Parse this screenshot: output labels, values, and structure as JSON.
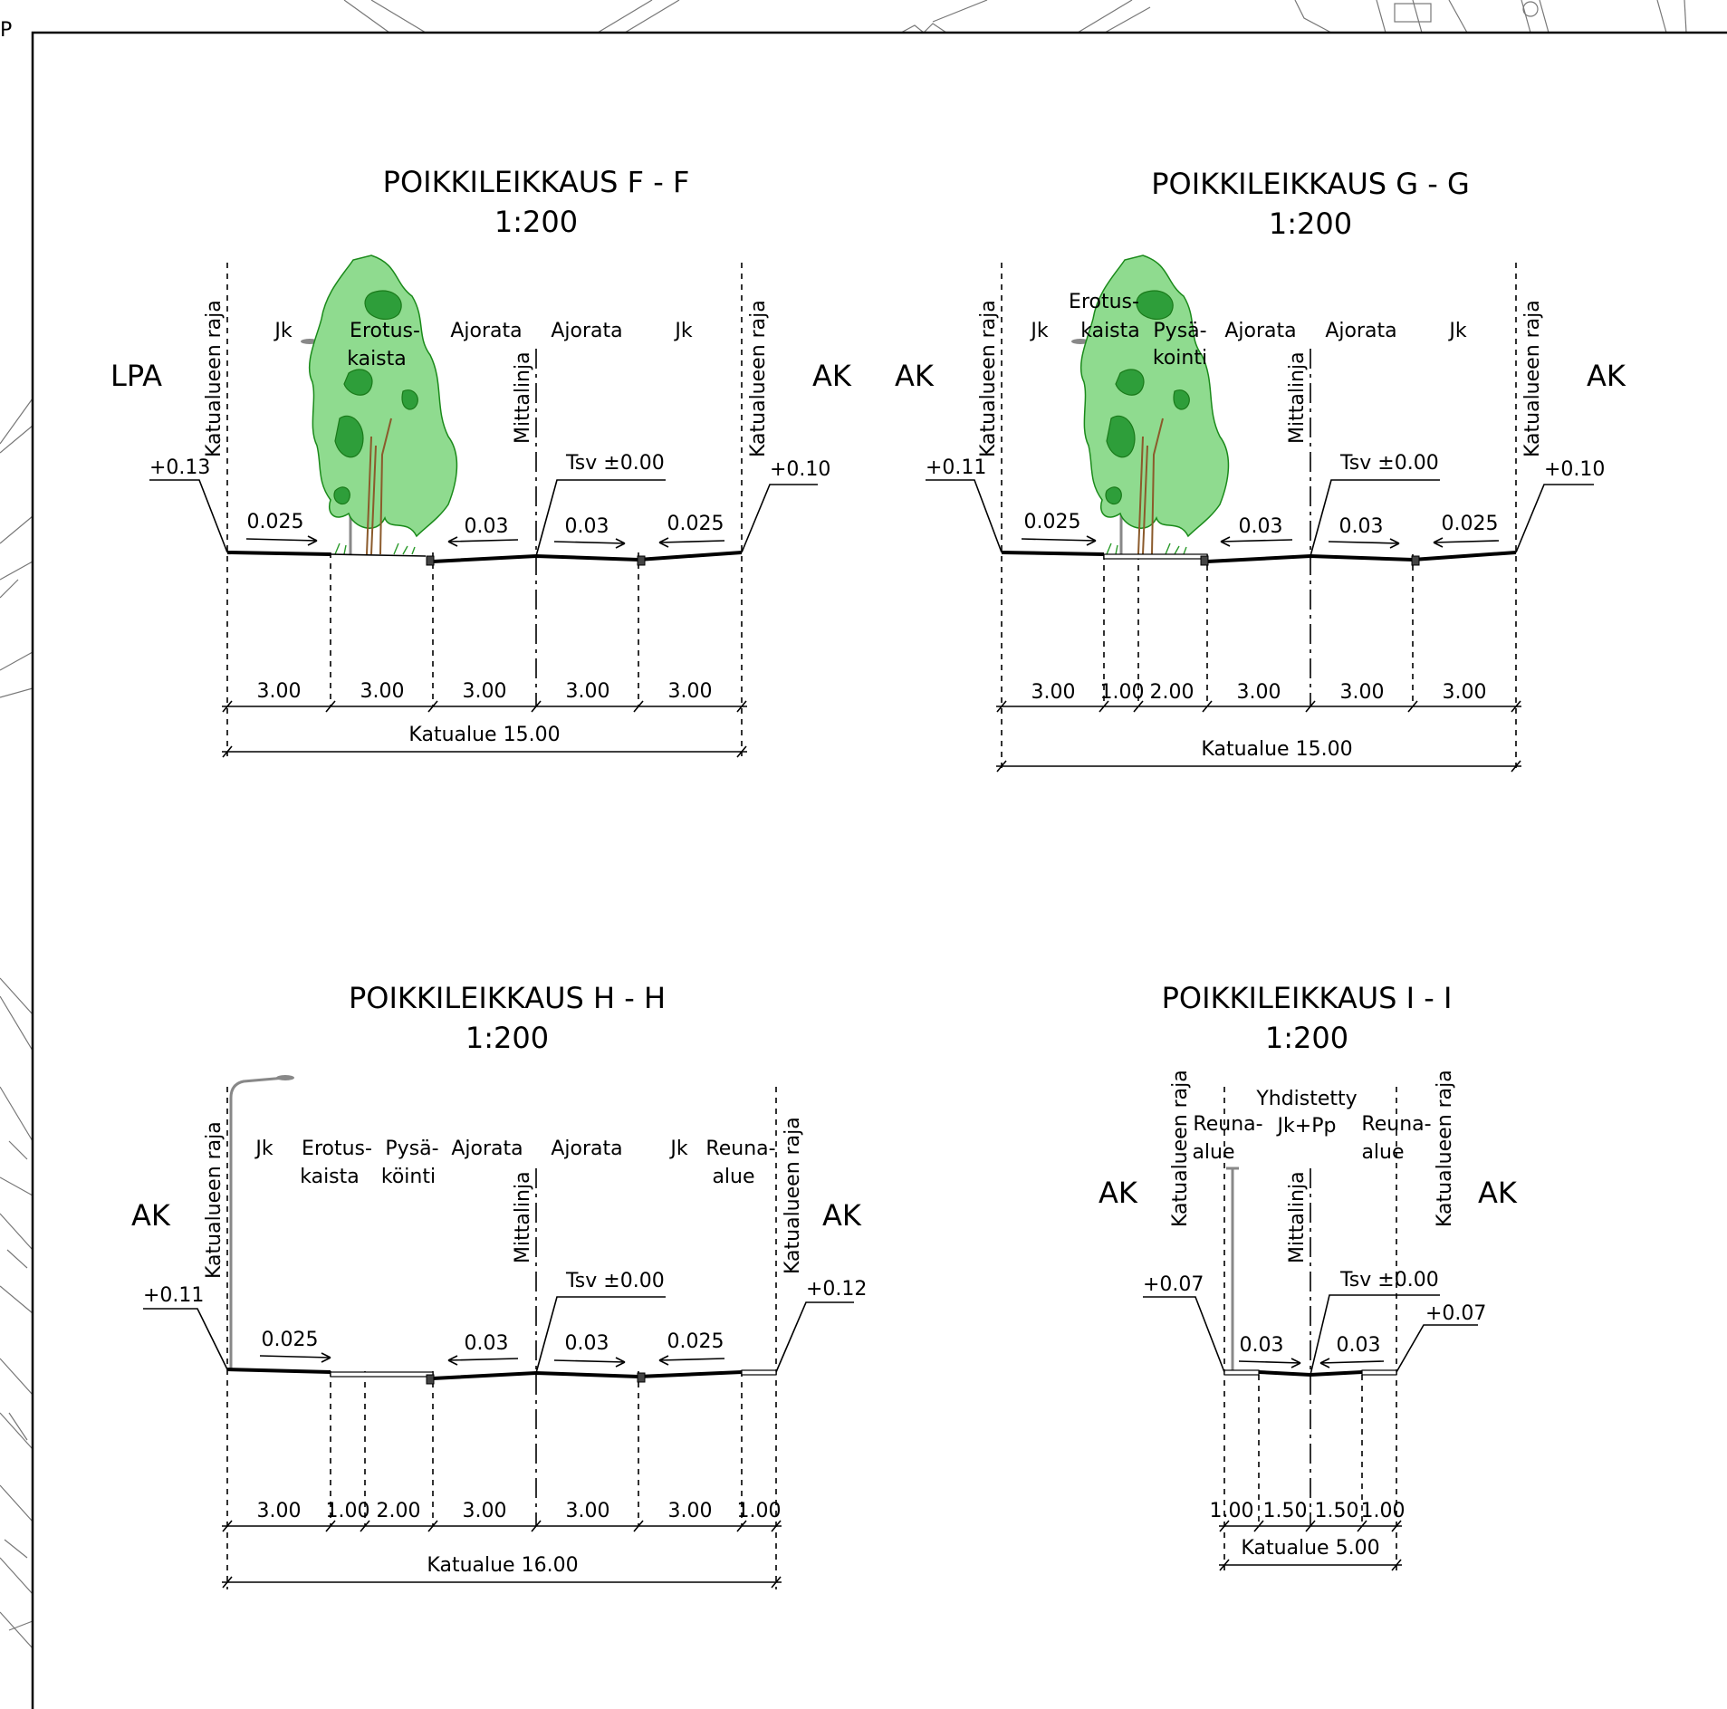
{
  "sheet": {
    "corner_mark": "P"
  },
  "sections": [
    {
      "title": "POIKKILEIKKAUS F - F",
      "scale": "1:200",
      "left_zone": "LPA",
      "right_zone": "AK",
      "boundary_label": "Katualueen raja",
      "centerline_label": "Mittalinja",
      "lane_labels": [
        "Jk",
        "Erotus-\nkaista",
        "Ajorata",
        "Ajorata",
        "Jk"
      ],
      "left_elev": "+0.13",
      "right_elev": "+0.10",
      "tsv": "Tsv ±0.00",
      "slopes": [
        "0.025",
        "0.03",
        "0.03",
        "0.025"
      ],
      "widths": [
        "3.00",
        "3.00",
        "3.00",
        "3.00",
        "3.00"
      ],
      "total": "Katualue 15.00"
    },
    {
      "title": "POIKKILEIKKAUS G - G",
      "scale": "1:200",
      "left_zone": "AK",
      "right_zone": "AK",
      "boundary_label": "Katualueen raja",
      "centerline_label": "Mittalinja",
      "lane_labels": [
        "Jk",
        "Erotus-\nkaista",
        "Pysä-\nkointi",
        "Ajorata",
        "Ajorata",
        "Jk"
      ],
      "left_elev": "+0.11",
      "right_elev": "+0.10",
      "tsv": "Tsv ±0.00",
      "slopes": [
        "0.025",
        "0.03",
        "0.03",
        "0.025"
      ],
      "widths": [
        "3.00",
        "1.00",
        "2.00",
        "3.00",
        "3.00",
        "3.00"
      ],
      "total": "Katualue 15.00"
    },
    {
      "title": "POIKKILEIKKAUS H - H",
      "scale": "1:200",
      "left_zone": "AK",
      "right_zone": "AK",
      "boundary_label": "Katualueen raja",
      "centerline_label": "Mittalinja",
      "lane_labels": [
        "Jk",
        "Erotus-\nkaista",
        "Pysä-\nköinti",
        "Ajorata",
        "Ajorata",
        "Jk",
        "Reuna-\nalue"
      ],
      "left_elev": "+0.11",
      "right_elev": "+0.12",
      "tsv": "Tsv ±0.00",
      "slopes": [
        "0.025",
        "0.03",
        "0.03",
        "0.025"
      ],
      "widths": [
        "3.00",
        "1.00",
        "2.00",
        "3.00",
        "3.00",
        "3.00",
        "1.00"
      ],
      "total": "Katualue 16.00"
    },
    {
      "title": "POIKKILEIKKAUS I - I",
      "scale": "1:200",
      "left_zone": "AK",
      "right_zone": "AK",
      "boundary_label": "Katualueen raja",
      "centerline_label": "Mittalinja",
      "lane_labels": [
        "Reuna-\nalue",
        "Yhdistetty\nJk+Pp",
        "Reuna-\nalue"
      ],
      "left_elev": "+0.07",
      "right_elev": "+0.07",
      "tsv": "Tsv ±0.00",
      "slopes": [
        "0.03",
        "0.03"
      ],
      "widths": [
        "1.00",
        "1.50",
        "1.50",
        "1.00"
      ],
      "total": "Katualue 5.00"
    }
  ]
}
